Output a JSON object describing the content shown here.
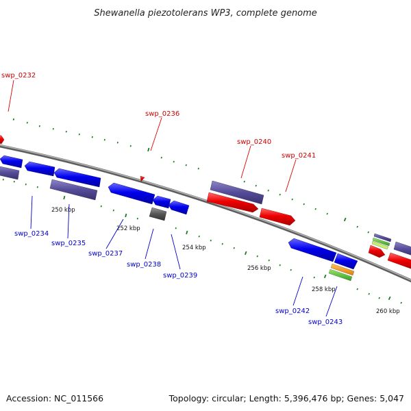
{
  "title": "Shewanella piezotolerans WP3, complete genome",
  "footer": {
    "accession": "Accession: NC_011566",
    "summary": "Topology: circular; Length: 5,396,476 bp; Genes: 5,047"
  },
  "colors": {
    "forward_gene": "#ee0000",
    "reverse_gene": "#0000ee",
    "label_forward": "#cc0000",
    "label_reverse": "#0000cc",
    "operon": "#554c99",
    "pseudo": "#555555",
    "tick": "#1a7a1a",
    "backbone": "#888888"
  },
  "ticks": {
    "labels": [
      "250 kbp",
      "252 kbp",
      "254 kbp",
      "256 kbp",
      "258 kbp",
      "260 kbp"
    ]
  },
  "genes": {
    "forward_labels": [
      "swp_0232",
      "swp_0236",
      "swp_0240",
      "swp_0241"
    ],
    "reverse_labels": [
      "swp_0234",
      "swp_0235",
      "swp_0237",
      "swp_0238",
      "swp_0239",
      "swp_0242",
      "swp_0243"
    ]
  }
}
